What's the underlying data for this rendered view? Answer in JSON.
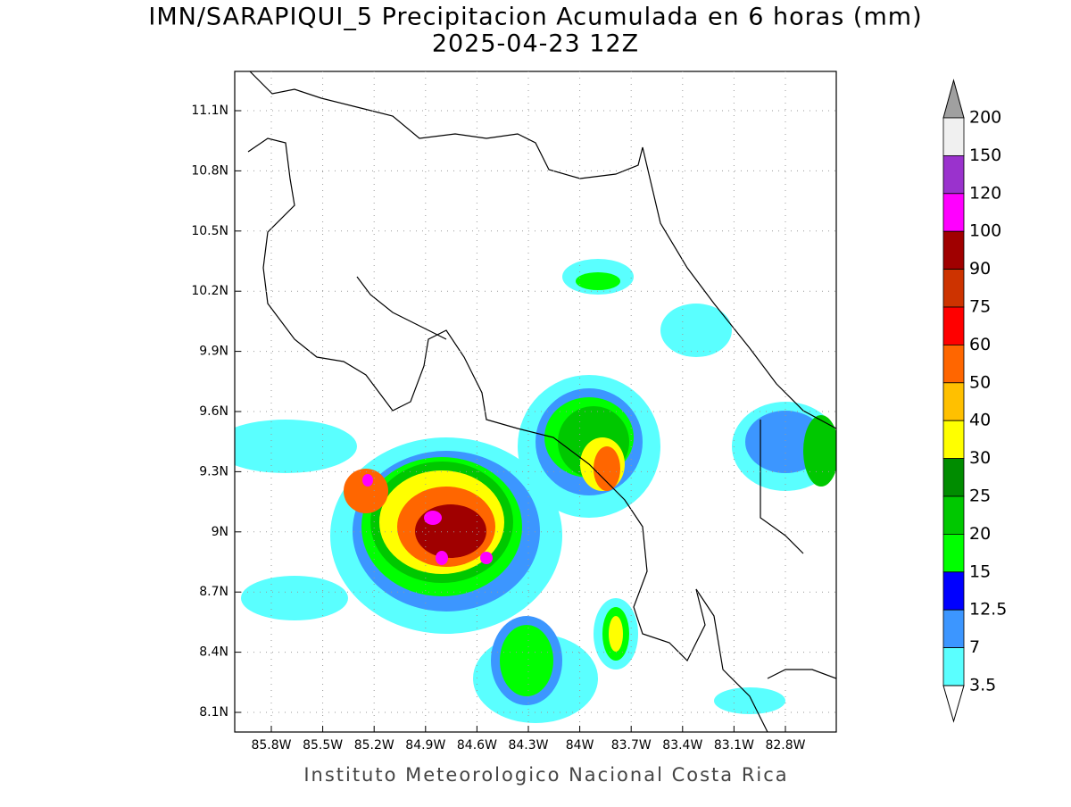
{
  "map": {
    "title": "IMN/SARAPIQUI_5 Precipitacion Acumulada en 6 horas (mm)",
    "subtitle": "2025-04-23 12Z",
    "lat_labels": [
      "11.1N",
      "10.8N",
      "10.5N",
      "10.2N",
      "9.9N",
      "9.6N",
      "9.3N",
      "9N",
      "8.7N",
      "8.4N",
      "8.1N"
    ],
    "lon_labels": [
      "85.8W",
      "85.5W",
      "85.2W",
      "84.9W",
      "84.6W",
      "84.3W",
      "84W",
      "83.7W",
      "83.4W",
      "83.1W",
      "82.8W"
    ],
    "footer": "Instituto Meteorologico Nacional Costa Rica",
    "colorbar": {
      "levels": [
        200,
        150,
        120,
        100,
        90,
        75,
        60,
        50,
        40,
        30,
        25,
        20,
        15,
        12.5,
        7,
        3.5
      ],
      "over_color": "#a0a0a0",
      "colors": [
        "#f0f0f0",
        "#9a32cd",
        "#ff00ff",
        "#a00000",
        "#cd3300",
        "#ff0000",
        "#ff6600",
        "#ffc000",
        "#ffff00",
        "#008c00",
        "#00c800",
        "#00ff00",
        "#0000ff",
        "#3c96ff",
        "#5affff"
      ],
      "under_color": "#ffffff"
    }
  }
}
